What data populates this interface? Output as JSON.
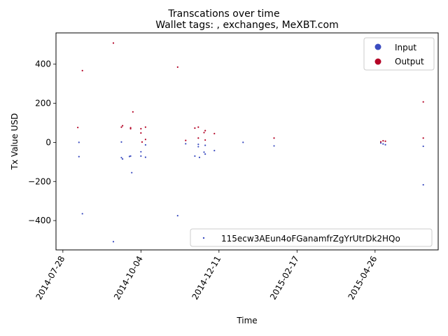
{
  "chart_data": {
    "type": "scatter",
    "suptitle": "Transcations over time",
    "title": "Wallet tags: , exchanges, MeXBT.com",
    "xlabel": "Time",
    "ylabel": "Tx Value USD",
    "xlim": [
      "2014-07-22",
      "2015-06-20"
    ],
    "ylim": [
      -550,
      560
    ],
    "xticks": [
      "2014-07-28",
      "2014-10-04",
      "2014-12-11",
      "2015-02-17",
      "2015-04-26"
    ],
    "yticks": [
      -400,
      -200,
      0,
      200,
      400
    ],
    "colors": {
      "input": "#3b4cc0",
      "output": "#b40426"
    },
    "legend_classes": {
      "placement": "upper right",
      "items": [
        "Input",
        "Output"
      ]
    },
    "legend_address": {
      "placement": "lower right",
      "label": "115ecw3AEun4oFGanamfrZgYrUtrDk2HQo"
    },
    "series": [
      {
        "name": "Input",
        "points": [
          [
            "2014-08-11",
            0
          ],
          [
            "2014-08-11",
            -73
          ],
          [
            "2014-08-14",
            -365
          ],
          [
            "2014-09-10",
            -508
          ],
          [
            "2014-09-17",
            2
          ],
          [
            "2014-09-17",
            -78
          ],
          [
            "2014-09-18",
            -85
          ],
          [
            "2014-09-24",
            -72
          ],
          [
            "2014-09-25",
            -70
          ],
          [
            "2014-09-26",
            -155
          ],
          [
            "2014-10-04",
            -48
          ],
          [
            "2014-10-04",
            -70
          ],
          [
            "2014-10-08",
            -13
          ],
          [
            "2014-10-08",
            -76
          ],
          [
            "2014-11-05",
            -375
          ],
          [
            "2014-11-12",
            -7
          ],
          [
            "2014-11-20",
            -70
          ],
          [
            "2014-11-23",
            -10
          ],
          [
            "2014-11-23",
            -22
          ],
          [
            "2014-11-24",
            -77
          ],
          [
            "2014-11-28",
            -50
          ],
          [
            "2014-11-29",
            -60
          ],
          [
            "2014-11-29",
            -15
          ],
          [
            "2014-12-07",
            -42
          ],
          [
            "2015-01-01",
            0
          ],
          [
            "2015-01-28",
            -18
          ],
          [
            "2015-05-01",
            -3
          ],
          [
            "2015-05-03",
            -8
          ],
          [
            "2015-05-05",
            -12
          ],
          [
            "2015-06-07",
            -20
          ],
          [
            "2015-06-07",
            -217
          ]
        ]
      },
      {
        "name": "Output",
        "points": [
          [
            "2014-08-10",
            76
          ],
          [
            "2014-08-14",
            367
          ],
          [
            "2014-09-10",
            508
          ],
          [
            "2014-09-17",
            78
          ],
          [
            "2014-09-18",
            85
          ],
          [
            "2014-09-25",
            75
          ],
          [
            "2014-09-25",
            70
          ],
          [
            "2014-09-27",
            156
          ],
          [
            "2014-10-04",
            70
          ],
          [
            "2014-10-04",
            48
          ],
          [
            "2014-10-05",
            2
          ],
          [
            "2014-10-08",
            78
          ],
          [
            "2014-10-08",
            15
          ],
          [
            "2014-11-05",
            385
          ],
          [
            "2014-11-12",
            10
          ],
          [
            "2014-11-20",
            73
          ],
          [
            "2014-11-23",
            78
          ],
          [
            "2014-11-23",
            22
          ],
          [
            "2014-11-28",
            50
          ],
          [
            "2014-11-29",
            60
          ],
          [
            "2014-11-29",
            12
          ],
          [
            "2014-12-07",
            45
          ],
          [
            "2015-01-28",
            22
          ],
          [
            "2015-05-01",
            3
          ],
          [
            "2015-05-03",
            8
          ],
          [
            "2015-05-05",
            6
          ],
          [
            "2015-06-07",
            207
          ],
          [
            "2015-06-07",
            22
          ]
        ]
      }
    ]
  }
}
